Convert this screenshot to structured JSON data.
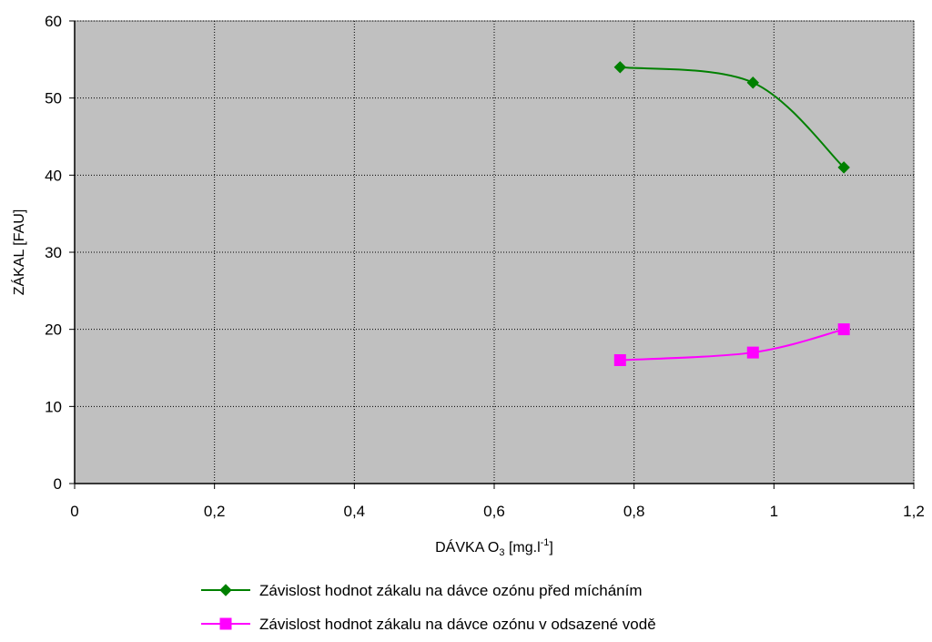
{
  "chart_data": {
    "type": "line",
    "x_label": {
      "main": "DÁVKA O",
      "subscript": "3",
      "bracket": " [mg.l",
      "superscript": "-1",
      "close": "]"
    },
    "y_label": "ZÁKAL [FAU]",
    "xlim": [
      0,
      1.2
    ],
    "ylim": [
      0,
      60
    ],
    "x_ticks": [
      0,
      0.2,
      0.4,
      0.6,
      0.8,
      1,
      1.2
    ],
    "x_tick_labels": [
      "0",
      "0,2",
      "0,4",
      "0,6",
      "0,8",
      "1",
      "1,2"
    ],
    "y_ticks": [
      0,
      10,
      20,
      30,
      40,
      50,
      60
    ],
    "y_tick_labels": [
      "0",
      "10",
      "20",
      "30",
      "40",
      "50",
      "60"
    ],
    "grid": true,
    "smoothed": true,
    "legend_position": "bottom",
    "series": [
      {
        "name": "Závislost hodnot zákalu na dávce ozónu před mícháním",
        "color": "#008000",
        "marker": "diamond",
        "x": [
          0.78,
          0.97,
          1.1
        ],
        "y": [
          54,
          52,
          41
        ]
      },
      {
        "name": "Závislost hodnot zákalu na dávce ozónu v odsazené vodě",
        "color": "#ff00ff",
        "marker": "square",
        "x": [
          0.78,
          0.97,
          1.1
        ],
        "y": [
          16,
          17,
          20
        ]
      }
    ]
  },
  "colors": {
    "plot_background": "#c0c0c0",
    "grid": "#000000",
    "border": "#808080"
  }
}
